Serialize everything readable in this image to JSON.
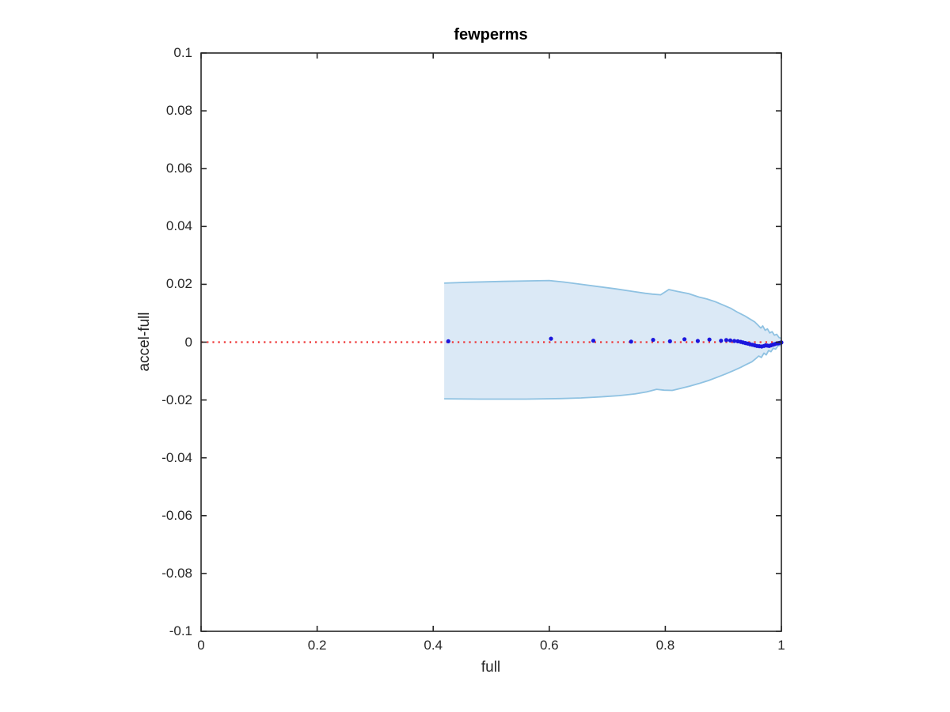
{
  "figure": {
    "background": "#ffffff",
    "axis_color": "#262626",
    "text_color": "#262626"
  },
  "chart_data": {
    "type": "area",
    "title": "fewperms",
    "xlabel": "full",
    "ylabel": "accel-full",
    "xlim": [
      0,
      1
    ],
    "ylim": [
      -0.1,
      0.1
    ],
    "grid": false,
    "legend": null,
    "xticks": {
      "values": [
        0,
        0.2,
        0.4,
        0.6,
        0.8,
        1
      ],
      "labels": [
        "0",
        "0.2",
        "0.4",
        "0.6",
        "0.8",
        "1"
      ]
    },
    "yticks": {
      "values": [
        0.1,
        0.08,
        0.06,
        0.04,
        0.02,
        0,
        -0.02,
        -0.04,
        -0.06,
        -0.08,
        -0.1
      ],
      "labels": [
        "0.1",
        "0.08",
        "0.06",
        "0.04",
        "0.02",
        "0",
        "-0.02",
        "-0.04",
        "-0.06",
        "-0.08",
        "-0.1"
      ]
    },
    "zero_line": {
      "y": 0,
      "style": "dotted",
      "color": "#ee3333"
    },
    "band": {
      "fill": "#dbe9f6",
      "edge": "#8fc2e2",
      "upper": [
        [
          0.419,
          0.0204
        ],
        [
          0.46,
          0.0207
        ],
        [
          0.52,
          0.021
        ],
        [
          0.57,
          0.0212
        ],
        [
          0.6,
          0.0213
        ],
        [
          0.625,
          0.0208
        ],
        [
          0.655,
          0.02
        ],
        [
          0.685,
          0.0192
        ],
        [
          0.715,
          0.0184
        ],
        [
          0.745,
          0.0175
        ],
        [
          0.765,
          0.0169
        ],
        [
          0.778,
          0.0166
        ],
        [
          0.792,
          0.0164
        ],
        [
          0.806,
          0.0182
        ],
        [
          0.82,
          0.0176
        ],
        [
          0.84,
          0.0168
        ],
        [
          0.858,
          0.0156
        ],
        [
          0.872,
          0.0149
        ],
        [
          0.886,
          0.014
        ],
        [
          0.9,
          0.0128
        ],
        [
          0.912,
          0.0118
        ],
        [
          0.924,
          0.0104
        ],
        [
          0.936,
          0.0092
        ],
        [
          0.946,
          0.008
        ],
        [
          0.954,
          0.007
        ],
        [
          0.96,
          0.0058
        ],
        [
          0.9645,
          0.0049
        ],
        [
          0.968,
          0.0056
        ],
        [
          0.972,
          0.0041
        ],
        [
          0.976,
          0.0046
        ],
        [
          0.98,
          0.0032
        ],
        [
          0.984,
          0.0036
        ],
        [
          0.988,
          0.0024
        ],
        [
          0.992,
          0.0027
        ],
        [
          0.996,
          0.0016
        ],
        [
          1.0,
          0.0013
        ]
      ],
      "lower": [
        [
          0.419,
          -0.0196
        ],
        [
          0.48,
          -0.0197
        ],
        [
          0.56,
          -0.0197
        ],
        [
          0.62,
          -0.0195
        ],
        [
          0.655,
          -0.0193
        ],
        [
          0.69,
          -0.0189
        ],
        [
          0.72,
          -0.0185
        ],
        [
          0.748,
          -0.0179
        ],
        [
          0.768,
          -0.0172
        ],
        [
          0.785,
          -0.0163
        ],
        [
          0.798,
          -0.0166
        ],
        [
          0.812,
          -0.0167
        ],
        [
          0.826,
          -0.016
        ],
        [
          0.842,
          -0.0152
        ],
        [
          0.858,
          -0.0143
        ],
        [
          0.874,
          -0.0133
        ],
        [
          0.89,
          -0.0121
        ],
        [
          0.904,
          -0.011
        ],
        [
          0.918,
          -0.0098
        ],
        [
          0.93,
          -0.0087
        ],
        [
          0.94,
          -0.0077
        ],
        [
          0.949,
          -0.0068
        ],
        [
          0.956,
          -0.0057
        ],
        [
          0.961,
          -0.0048
        ],
        [
          0.9655,
          -0.0053
        ],
        [
          0.97,
          -0.0038
        ],
        [
          0.974,
          -0.0044
        ],
        [
          0.978,
          -0.0029
        ],
        [
          0.982,
          -0.0033
        ],
        [
          0.986,
          -0.0021
        ],
        [
          0.99,
          -0.0024
        ],
        [
          0.994,
          -0.0013
        ],
        [
          1.0,
          -0.001
        ]
      ]
    },
    "scatter": {
      "color": "#1b16dd",
      "marker": "dot",
      "points": [
        [
          0.426,
          0.0003
        ],
        [
          0.603,
          0.0012
        ],
        [
          0.676,
          0.0005
        ],
        [
          0.741,
          0.0002
        ],
        [
          0.779,
          0.0008
        ],
        [
          0.808,
          0.0003
        ],
        [
          0.833,
          0.001
        ],
        [
          0.856,
          0.0004
        ],
        [
          0.876,
          0.0009
        ],
        [
          0.896,
          0.0005
        ],
        [
          0.905,
          0.0007
        ],
        [
          0.912,
          0.0006
        ],
        [
          0.919,
          0.0004
        ],
        [
          0.925,
          0.0003
        ],
        [
          0.93,
          0.0001
        ],
        [
          0.934,
          -0.0001
        ],
        [
          0.938,
          -0.0003
        ],
        [
          0.942,
          -0.0005
        ],
        [
          0.946,
          -0.0007
        ],
        [
          0.95,
          -0.0009
        ],
        [
          0.954,
          -0.0011
        ],
        [
          0.958,
          -0.0013
        ],
        [
          0.962,
          -0.0014
        ],
        [
          0.966,
          -0.0015
        ],
        [
          0.97,
          -0.0013
        ],
        [
          0.973,
          -0.0011
        ],
        [
          0.976,
          -0.0012
        ],
        [
          0.979,
          -0.0013
        ],
        [
          0.982,
          -0.0011
        ],
        [
          0.985,
          -0.0009
        ],
        [
          0.988,
          -0.0007
        ],
        [
          0.991,
          -0.0005
        ],
        [
          0.994,
          -0.0004
        ],
        [
          0.996,
          -0.0003
        ],
        [
          0.998,
          -0.0002
        ],
        [
          1.0,
          -0.0001
        ]
      ]
    }
  }
}
